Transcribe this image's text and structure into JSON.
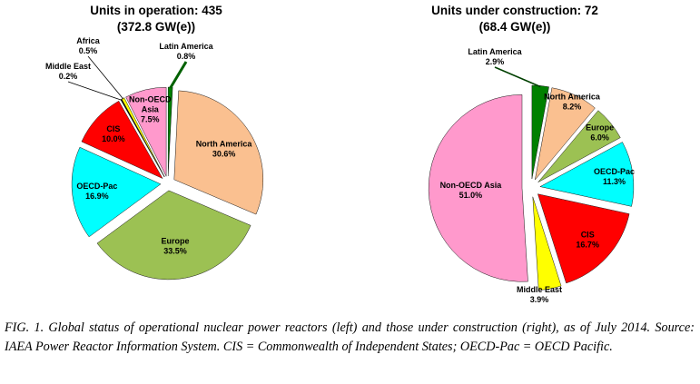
{
  "figure": {
    "caption": "FIG. 1. Global status of operational nuclear power reactors (left) and those under construction (right), as of July 2014. Source: IAEA Power Reactor Information System. CIS = Commonwealth of Independent States; OECD-Pac = OECD Pacific."
  },
  "chart_data": [
    {
      "type": "pie",
      "title": "Units in operation: 435",
      "subtitle": "(372.8 GW(e))",
      "units": 435,
      "capacity_gwe": 372.8,
      "start_angle_deg": 0,
      "direction": "clockwise",
      "slices": [
        {
          "label": "Latin America",
          "value": 0.8,
          "pct_label": "0.8%",
          "color": "#008000",
          "placement": "outside",
          "lines": [
            "Latin America",
            "0.8%"
          ],
          "label_offset": [
            20,
            -146
          ],
          "leader": {
            "color": "#006100",
            "width": 3
          }
        },
        {
          "label": "North America",
          "value": 30.6,
          "pct_label": "30.6%",
          "color": "#FAC090",
          "placement": "inside",
          "label_r": 0.66,
          "lines": [
            "North America",
            "30.6%"
          ]
        },
        {
          "label": "Europe",
          "value": 33.5,
          "pct_label": "33.5%",
          "color": "#9CC153",
          "placement": "inside",
          "label_r": 0.62,
          "lines": [
            "Europe",
            "33.5%"
          ]
        },
        {
          "label": "OECD-Pac",
          "value": 16.9,
          "pct_label": "16.9%",
          "color": "#00FFFF",
          "placement": "inside",
          "label_r": 0.72,
          "lines": [
            "OECD-Pac",
            "16.9%"
          ]
        },
        {
          "label": "CIS",
          "value": 10.0,
          "pct_label": "10.0%",
          "color": "#FF0000",
          "placement": "inside",
          "label_r": 0.75,
          "lines": [
            "CIS",
            "10.0%"
          ]
        },
        {
          "label": "Middle East",
          "value": 0.2,
          "pct_label": "0.2%",
          "color": "#000000",
          "placement": "outside",
          "lines": [
            "Middle East",
            "0.2%"
          ],
          "label_offset": [
            -110,
            -124
          ],
          "leader": {
            "color": "#000000",
            "width": 0.8
          }
        },
        {
          "label": "Africa",
          "value": 0.5,
          "pct_label": "0.5%",
          "color": "#FFFF00",
          "placement": "outside",
          "lines": [
            "Africa",
            "0.5%"
          ],
          "label_offset": [
            -88,
            -152
          ],
          "leader": {
            "color": "#000000",
            "width": 0.8
          }
        },
        {
          "label": "Non-OECD Asia",
          "value": 7.5,
          "pct_label": "7.5%",
          "color": "#FF99CC",
          "placement": "inside",
          "label_r": 0.78,
          "lines": [
            "Non-OECD",
            "Asia",
            "7.5%"
          ]
        }
      ]
    },
    {
      "type": "pie",
      "title": "Units under construction: 72",
      "subtitle": "(68.4 GW(e))",
      "units": 72,
      "capacity_gwe": 68.4,
      "start_angle_deg": 0,
      "direction": "clockwise",
      "slices": [
        {
          "label": "Latin America",
          "value": 2.9,
          "pct_label": "2.9%",
          "color": "#008000",
          "placement": "outside",
          "lines": [
            "Latin America",
            "2.9%"
          ],
          "label_offset": [
            -40,
            -145
          ],
          "leader": {
            "color": "#004000",
            "width": 1.5
          }
        },
        {
          "label": "North America",
          "value": 8.2,
          "pct_label": "8.2%",
          "color": "#FAC090",
          "placement": "inside",
          "label_r": 0.93,
          "lines": [
            "North America",
            "8.2%"
          ]
        },
        {
          "label": "Europe",
          "value": 6.0,
          "pct_label": "6.0%",
          "color": "#9CC153",
          "placement": "inside",
          "label_r": 0.85,
          "lines": [
            "Europe",
            "6.0%"
          ]
        },
        {
          "label": "OECD-Pac",
          "value": 11.3,
          "pct_label": "11.3%",
          "color": "#00FFFF",
          "placement": "inside",
          "label_r": 0.8,
          "lines": [
            "OECD-Pac",
            "11.3%"
          ]
        },
        {
          "label": "CIS",
          "value": 16.7,
          "pct_label": "16.7%",
          "color": "#FF0000",
          "placement": "inside",
          "label_r": 0.72,
          "lines": [
            "CIS",
            "16.7%"
          ]
        },
        {
          "label": "Middle East",
          "value": 3.9,
          "pct_label": "3.9%",
          "color": "#FFFF00",
          "placement": "outside",
          "lines": [
            "Middle East",
            "3.9%"
          ],
          "label_offset": [
            9,
            117
          ],
          "leader": null
        },
        {
          "label": "Non-OECD Asia",
          "value": 51.0,
          "pct_label": "51.0%",
          "color": "#FF99CC",
          "placement": "inside",
          "label_r": 0.55,
          "lines": [
            "Non-OECD Asia",
            "51.0%"
          ]
        }
      ]
    }
  ]
}
